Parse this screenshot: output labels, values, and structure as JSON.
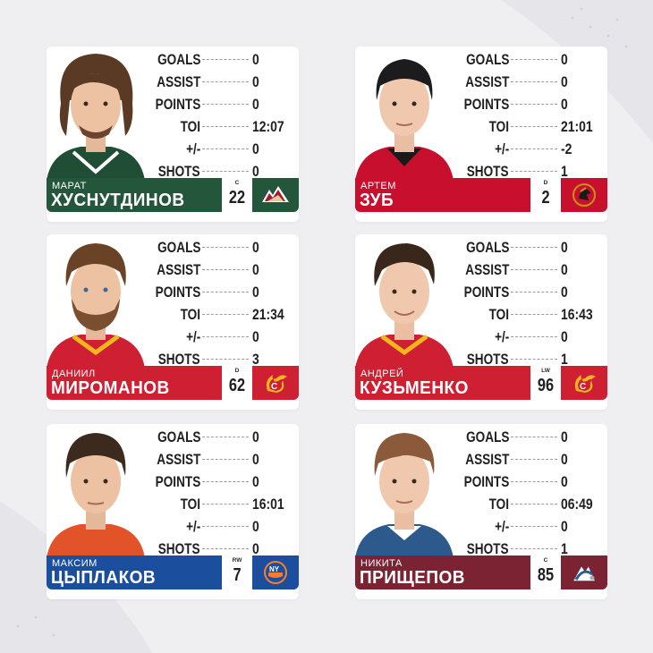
{
  "colors": {
    "minnesota": "#24563b",
    "ottawa": "#c8102e",
    "calgary": "#cf1f33",
    "islanders": "#1b4f9e",
    "colorado": "#7b2333",
    "background": "#efeff1"
  },
  "stat_labels": [
    "GOALS",
    "ASSIST",
    "POINTS",
    "TOI",
    "+/-",
    "SHOTS"
  ],
  "players": [
    {
      "first_name": "МАРАТ",
      "last_name": "ХУСНУТДИНОВ",
      "position": "C",
      "number": "22",
      "team_icon": "minnesota-wild-logo-icon",
      "stats": [
        "0",
        "0",
        "0",
        "12:07",
        "0",
        "0"
      ]
    },
    {
      "first_name": "АРТЕМ",
      "last_name": "ЗУБ",
      "position": "D",
      "number": "2",
      "team_icon": "ottawa-senators-logo-icon",
      "stats": [
        "0",
        "0",
        "0",
        "21:01",
        "-2",
        "1"
      ]
    },
    {
      "first_name": "ДАНИИЛ",
      "last_name": "МИРОМАНОВ",
      "position": "D",
      "number": "62",
      "team_icon": "calgary-flames-logo-icon",
      "stats": [
        "0",
        "0",
        "0",
        "21:34",
        "0",
        "3"
      ]
    },
    {
      "first_name": "АНДРЕЙ",
      "last_name": "КУЗЬМЕНКО",
      "position": "LW",
      "number": "96",
      "team_icon": "calgary-flames-logo-icon",
      "stats": [
        "0",
        "0",
        "0",
        "16:43",
        "0",
        "1"
      ]
    },
    {
      "first_name": "МАКСИМ",
      "last_name": "ЦЫПЛАКОВ",
      "position": "RW",
      "number": "7",
      "team_icon": "new-york-islanders-logo-icon",
      "stats": [
        "0",
        "0",
        "0",
        "16:01",
        "0",
        "0"
      ]
    },
    {
      "first_name": "НИКИТА",
      "last_name": "ПРИЩЕПОВ",
      "position": "C",
      "number": "85",
      "team_icon": "colorado-avalanche-logo-icon",
      "stats": [
        "0",
        "0",
        "0",
        "06:49",
        "0",
        "1"
      ]
    }
  ]
}
